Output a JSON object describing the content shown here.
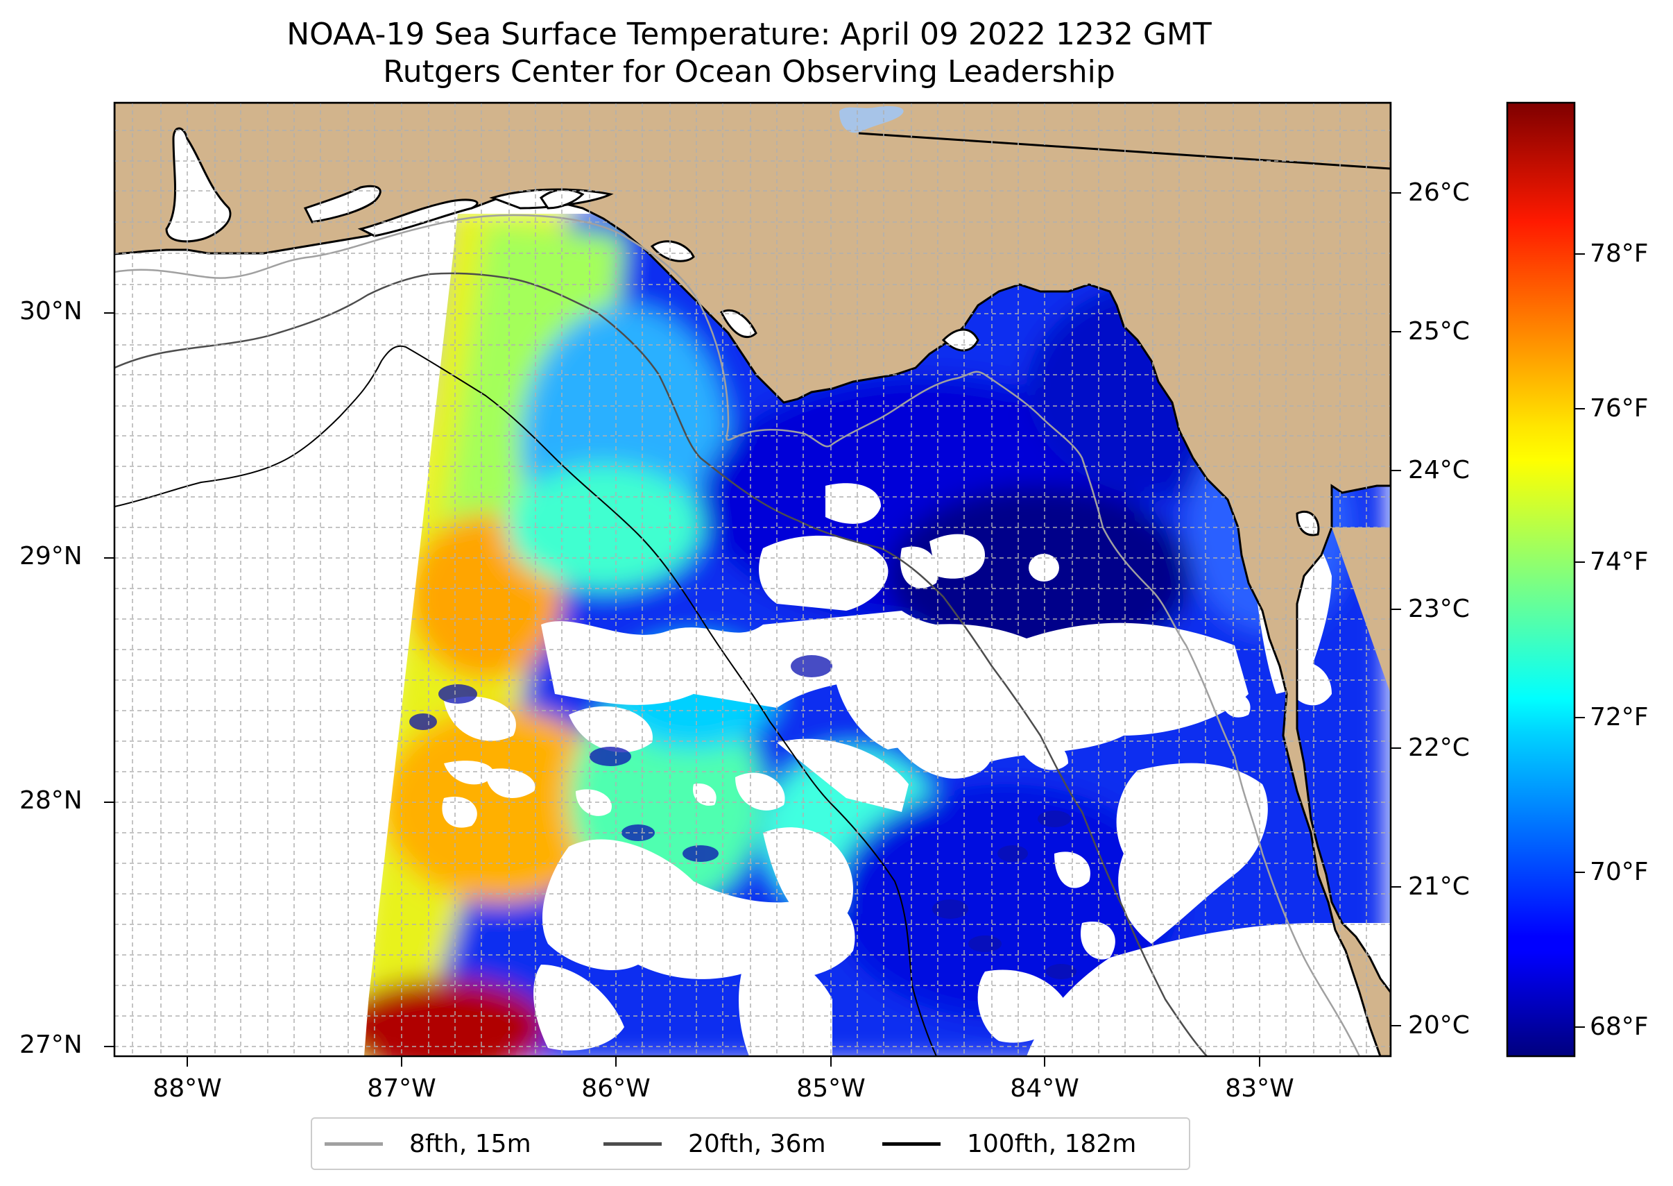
{
  "title": "NOAA-19 Sea Surface Temperature: April 09 2022 1232 GMT",
  "subtitle": "Rutgers Center for Ocean Observing Leadership",
  "map": {
    "lon_range": [
      -88.33,
      -82.4
    ],
    "lat_range": [
      26.93,
      30.86
    ],
    "lat_ticks": [
      {
        "value": 30,
        "label": "30°N"
      },
      {
        "value": 29,
        "label": "29°N"
      },
      {
        "value": 28,
        "label": "28°N"
      },
      {
        "value": 27,
        "label": "27°N"
      }
    ],
    "lon_ticks": [
      {
        "value": -88,
        "label": "88°W"
      },
      {
        "value": -87,
        "label": "87°W"
      },
      {
        "value": -86,
        "label": "86°W"
      },
      {
        "value": -85,
        "label": "85°W"
      },
      {
        "value": -84,
        "label": "84°W"
      },
      {
        "value": -83,
        "label": "83°W"
      }
    ],
    "grid": true,
    "land_color": "#d2b48c",
    "ocean_color": "#ffffff",
    "lake_color": "#a7c4e8"
  },
  "colorbar": {
    "colormap": "jet",
    "celsius_ticks": [
      "26°C",
      "25°C",
      "24°C",
      "23°C",
      "22°C",
      "21°C",
      "20°C"
    ],
    "fahrenheit_ticks": [
      "78°F",
      "76°F",
      "74°F",
      "72°F",
      "70°F",
      "68°F"
    ]
  },
  "legend": {
    "placement": "bottom-center",
    "items": [
      {
        "label": "8fth, 15m",
        "color": "#a0a0a0"
      },
      {
        "label": "20fth, 36m",
        "color": "#4d4d4d"
      },
      {
        "label": "100fth, 182m",
        "color": "#000000"
      }
    ]
  }
}
